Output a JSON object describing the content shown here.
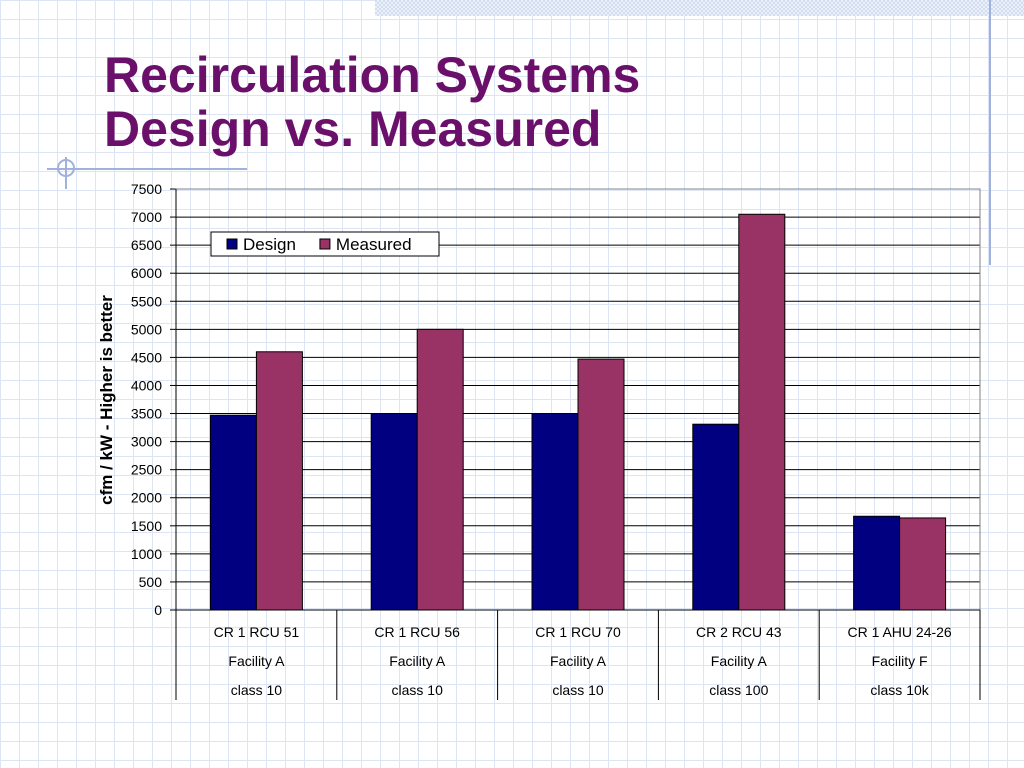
{
  "slide": {
    "title_line1": "Recirculation Systems",
    "title_line2": "Design vs. Measured",
    "title_color": "#6a0f6a"
  },
  "chart_data": {
    "type": "bar",
    "ylabel": "cfm / kW - Higher is better",
    "ylim": [
      0,
      7500
    ],
    "ytick_step": 500,
    "grid": true,
    "legend_position": "top-left",
    "categories": [
      [
        "CR 1 RCU 51",
        "Facility A",
        "class 10"
      ],
      [
        "CR 1 RCU 56",
        "Facility A",
        "class 10"
      ],
      [
        "CR 1 RCU 70",
        "Facility A",
        "class 10"
      ],
      [
        "CR 2 RCU 43",
        "Facility A",
        "class 100"
      ],
      [
        "CR 1 AHU 24-26",
        "Facility F",
        "class 10k"
      ]
    ],
    "series": [
      {
        "name": "Design",
        "color": "#000080",
        "values": [
          3470,
          3500,
          3500,
          3310,
          1670
        ]
      },
      {
        "name": "Measured",
        "color": "#993366",
        "values": [
          4600,
          5000,
          4470,
          7050,
          1640
        ]
      }
    ]
  }
}
